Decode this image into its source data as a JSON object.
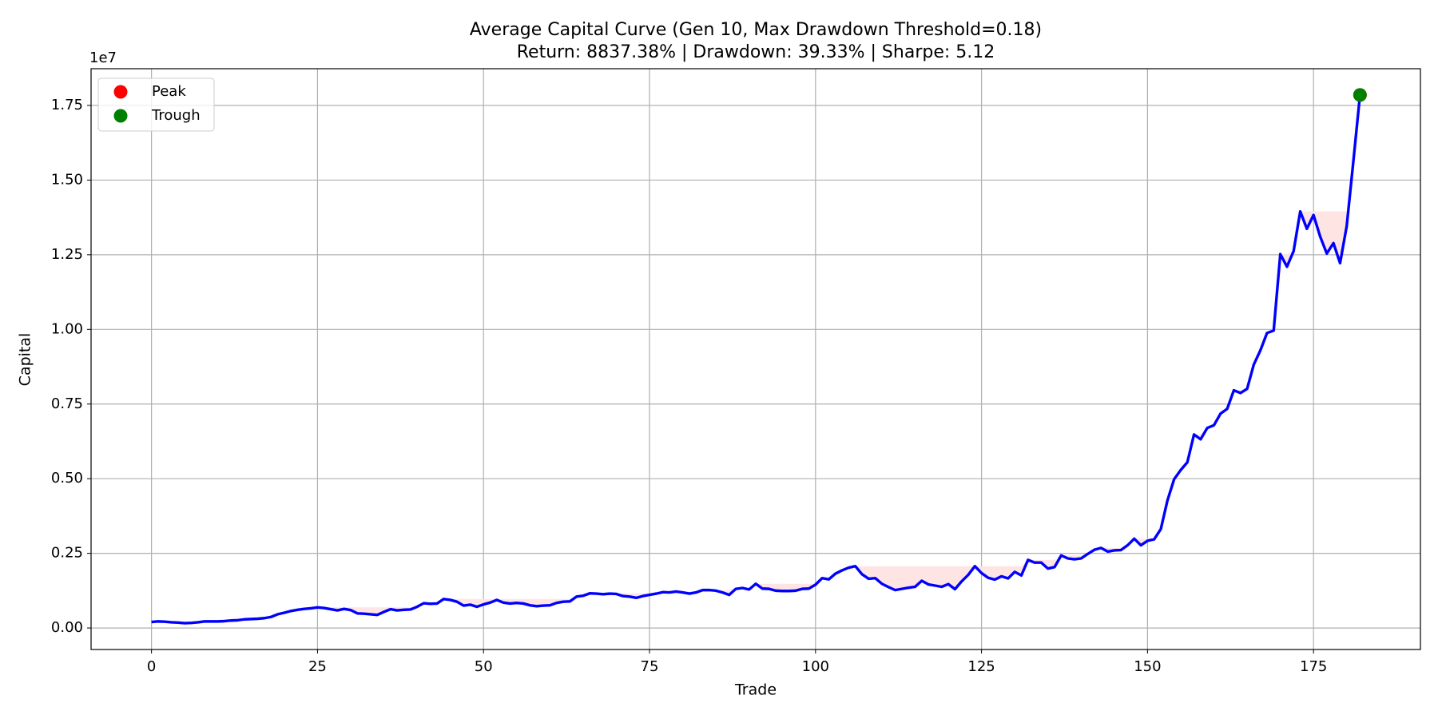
{
  "chart_data": {
    "type": "line",
    "title": "Average Capital Curve (Gen 10, Max Drawdown Threshold=0.18)",
    "subtitle": "Return: 8837.38% | Drawdown: 39.33% | Sharpe: 5.12",
    "x_label": "Trade",
    "y_label": "Capital",
    "y_offset_label": "1e7",
    "color": "#0000ff",
    "drawdown_color": "#ffe4e4",
    "grid": true,
    "legend": "upper left",
    "x": [
      0,
      1,
      2,
      3,
      4,
      5,
      6,
      7,
      8,
      9,
      10,
      11,
      12,
      13,
      14,
      15,
      16,
      17,
      18,
      19,
      20,
      21,
      22,
      23,
      24,
      25,
      26,
      27,
      28,
      29,
      30,
      31,
      32,
      33,
      34,
      35,
      36,
      37,
      38,
      39,
      40,
      41,
      42,
      43,
      44,
      45,
      46,
      47,
      48,
      49,
      50,
      51,
      52,
      53,
      54,
      55,
      56,
      57,
      58,
      59,
      60,
      61,
      62,
      63,
      64,
      65,
      66,
      67,
      68,
      69,
      70,
      71,
      72,
      73,
      74,
      75,
      76,
      77,
      78,
      79,
      80,
      81,
      82,
      83,
      84,
      85,
      86,
      87,
      88,
      89,
      90,
      91,
      92,
      93,
      94,
      95,
      96,
      97,
      98,
      99,
      100,
      101,
      102,
      103,
      104,
      105,
      106,
      107,
      108,
      109,
      110,
      111,
      112,
      113,
      114,
      115,
      116,
      117,
      118,
      119,
      120,
      121,
      122,
      123,
      124,
      125,
      126,
      127,
      128,
      129,
      130,
      131,
      132,
      133,
      134,
      135,
      136,
      137,
      138,
      139,
      140,
      141,
      142,
      143,
      144,
      145,
      146,
      147,
      148,
      149,
      150,
      151,
      152,
      153,
      154,
      155,
      156,
      157,
      158,
      159,
      160,
      161,
      162,
      163,
      164,
      165,
      166,
      167,
      168,
      169,
      170,
      171,
      172,
      173,
      174,
      175,
      176,
      177,
      178,
      179,
      180,
      181,
      182
    ],
    "values": [
      0.02,
      0.022,
      0.021,
      0.019,
      0.018,
      0.016,
      0.017,
      0.019,
      0.022,
      0.022,
      0.022,
      0.023,
      0.025,
      0.026,
      0.029,
      0.03,
      0.031,
      0.033,
      0.037,
      0.046,
      0.051,
      0.057,
      0.061,
      0.064,
      0.066,
      0.069,
      0.067,
      0.063,
      0.059,
      0.064,
      0.06,
      0.049,
      0.048,
      0.046,
      0.044,
      0.054,
      0.063,
      0.059,
      0.061,
      0.062,
      0.071,
      0.083,
      0.081,
      0.082,
      0.097,
      0.094,
      0.088,
      0.075,
      0.078,
      0.071,
      0.079,
      0.085,
      0.094,
      0.085,
      0.082,
      0.084,
      0.082,
      0.076,
      0.073,
      0.075,
      0.076,
      0.084,
      0.088,
      0.089,
      0.105,
      0.108,
      0.116,
      0.115,
      0.113,
      0.115,
      0.114,
      0.107,
      0.105,
      0.101,
      0.107,
      0.111,
      0.115,
      0.12,
      0.119,
      0.122,
      0.119,
      0.115,
      0.119,
      0.127,
      0.127,
      0.125,
      0.119,
      0.111,
      0.131,
      0.134,
      0.129,
      0.148,
      0.132,
      0.131,
      0.125,
      0.124,
      0.124,
      0.125,
      0.131,
      0.132,
      0.145,
      0.167,
      0.163,
      0.182,
      0.193,
      0.202,
      0.207,
      0.18,
      0.165,
      0.167,
      0.148,
      0.137,
      0.127,
      0.131,
      0.135,
      0.138,
      0.158,
      0.146,
      0.142,
      0.138,
      0.147,
      0.13,
      0.156,
      0.178,
      0.207,
      0.184,
      0.168,
      0.162,
      0.173,
      0.166,
      0.188,
      0.176,
      0.228,
      0.219,
      0.219,
      0.199,
      0.204,
      0.243,
      0.233,
      0.23,
      0.233,
      0.248,
      0.262,
      0.268,
      0.256,
      0.26,
      0.261,
      0.277,
      0.299,
      0.277,
      0.292,
      0.297,
      0.331,
      0.427,
      0.498,
      0.529,
      0.555,
      0.648,
      0.632,
      0.67,
      0.679,
      0.718,
      0.734,
      0.796,
      0.787,
      0.801,
      0.882,
      0.93,
      0.988,
      0.996,
      1.252,
      1.21,
      1.262,
      1.395,
      1.337,
      1.383,
      1.311,
      1.254,
      1.289,
      1.222,
      1.346,
      1.563,
      1.785
    ],
    "markers": [
      {
        "name": "Peak",
        "color": "#ff0000",
        "x": 182,
        "y": 1.785
      },
      {
        "name": "Trough",
        "color": "#008000",
        "x": 182,
        "y": 1.785
      }
    ],
    "xlim": [
      -9.1,
      191.1
    ],
    "xticks": [
      0,
      25,
      50,
      75,
      100,
      125,
      150,
      175
    ],
    "ylim": [
      -0.072,
      1.873
    ],
    "yticks": [
      {
        "value": 0,
        "label": "0.00"
      },
      0.25,
      {
        "value": 0.5,
        "label": "0.50"
      },
      0.75,
      {
        "value": 1,
        "label": "1.00"
      },
      1.25,
      {
        "value": 1.5,
        "label": "1.50"
      },
      1.75
    ]
  }
}
